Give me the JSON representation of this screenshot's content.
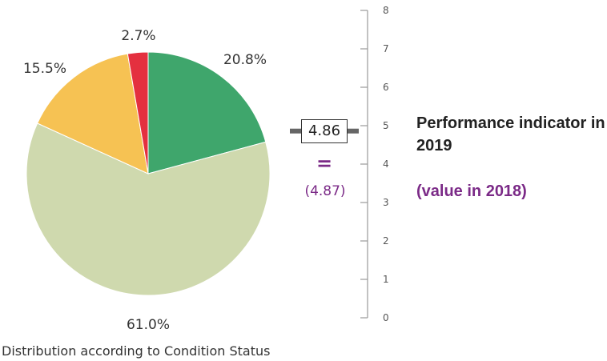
{
  "chart_data": [
    {
      "type": "pie",
      "caption": "Distribution according to Condition Status",
      "categories": [
        "",
        "",
        "",
        ""
      ],
      "values": [
        20.8,
        61.0,
        15.5,
        2.7
      ],
      "labels": [
        "20.8%",
        "61.0%",
        "15.5%",
        "2.7%"
      ],
      "colors": [
        "#3fa66c",
        "#cfd9ae",
        "#f6c253",
        "#e4303f"
      ]
    },
    {
      "type": "gauge",
      "title": "Performance indicator in 2019",
      "subtitle": "(value in 2018)",
      "value": 4.86,
      "value_label": "4.86",
      "previous_value": 4.87,
      "previous_label": "(4.87)",
      "equals_symbol": "=",
      "ylim": [
        0,
        8
      ],
      "ticks": [
        "0",
        "1",
        "2",
        "3",
        "4",
        "5",
        "6",
        "7",
        "8"
      ],
      "accent_color": "#7b2a87"
    }
  ]
}
